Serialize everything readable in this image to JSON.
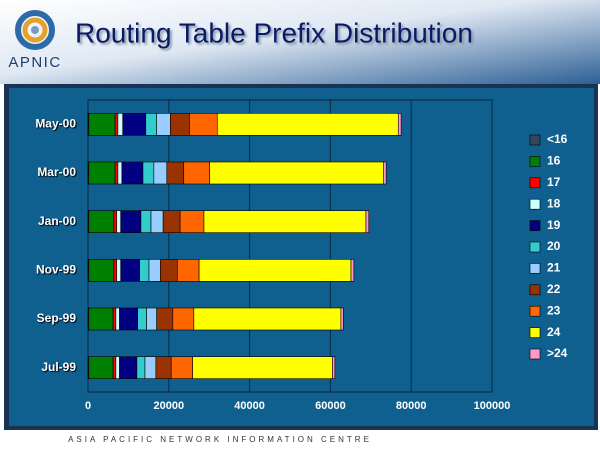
{
  "logo_text": "APNIC",
  "footer": "ASIA PACIFIC NETWORK INFORMATION CENTRE",
  "chart_data": {
    "type": "stacked-bar-horizontal",
    "title": "Routing Table Prefix Distribution",
    "categories": [
      "May-00",
      "Mar-00",
      "Jan-00",
      "Nov-99",
      "Sep-99",
      "Jul-99"
    ],
    "series": [
      {
        "name": "<16",
        "color": "#33475b",
        "values": [
          200,
          200,
          200,
          200,
          200,
          200
        ]
      },
      {
        "name": "16",
        "color": "#008000",
        "values": [
          6500,
          6500,
          6200,
          6200,
          6000,
          6000
        ]
      },
      {
        "name": "17",
        "color": "#ff0000",
        "values": [
          700,
          700,
          700,
          700,
          700,
          700
        ]
      },
      {
        "name": "18",
        "color": "#ccffff",
        "values": [
          1200,
          1000,
          1000,
          1000,
          900,
          900
        ]
      },
      {
        "name": "19",
        "color": "#000080",
        "values": [
          5700,
          5200,
          5000,
          4700,
          4500,
          4300
        ]
      },
      {
        "name": "20",
        "color": "#33cccc",
        "values": [
          2700,
          2700,
          2500,
          2300,
          2200,
          2000
        ]
      },
      {
        "name": "21",
        "color": "#99ccff",
        "values": [
          3400,
          3200,
          3000,
          2800,
          2500,
          2700
        ]
      },
      {
        "name": "22",
        "color": "#993300",
        "values": [
          4700,
          4200,
          4200,
          4200,
          4000,
          3800
        ]
      },
      {
        "name": "23",
        "color": "#ff6600",
        "values": [
          6900,
          6400,
          5900,
          5400,
          5200,
          5300
        ]
      },
      {
        "name": "24",
        "color": "#ffff00",
        "values": [
          44800,
          43000,
          40100,
          37600,
          36400,
          34600
        ]
      },
      {
        "name": ">24",
        "color": "#ff99cc",
        "values": [
          700,
          700,
          700,
          700,
          600,
          600
        ]
      }
    ],
    "xlim": [
      0,
      100000
    ],
    "xticks": [
      0,
      20000,
      40000,
      60000,
      80000,
      100000
    ],
    "grid": true,
    "legend": "right"
  }
}
